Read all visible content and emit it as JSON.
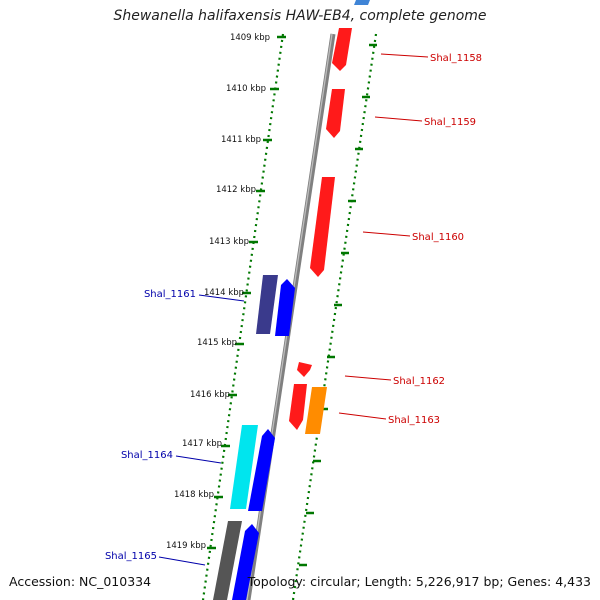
{
  "title": "Shewanella halifaxensis HAW-EB4, complete genome",
  "footer": {
    "accession": "Accession: NC_010334",
    "topology": "Topology: circular; Length: 5,226,917 bp; Genes: 4,433"
  },
  "colors": {
    "forward_gene": "#ff0000",
    "reverse_gene": "#0000ff",
    "dark_blue_gene": "#3a3a8c",
    "cyan_gene": "#00e5ee",
    "orange_gene": "#ff8c00",
    "gray_gene": "#555555",
    "ticks": "#007700",
    "backbone": "#888888"
  },
  "scale_labels": [
    "1409 kbp",
    "1410 kbp",
    "1411 kbp",
    "1412 kbp",
    "1413 kbp",
    "1414 kbp",
    "1415 kbp",
    "1416 kbp",
    "1417 kbp",
    "1418 kbp",
    "1419 kbp"
  ],
  "gene_labels": {
    "shal_1158": "Shal_1158",
    "shal_1159": "Shal_1159",
    "shal_1160": "Shal_1160",
    "shal_1161": "Shal_1161",
    "shal_1162": "Shal_1162",
    "shal_1163": "Shal_1163",
    "shal_1164": "Shal_1164",
    "shal_1165": "Shal_1165"
  }
}
